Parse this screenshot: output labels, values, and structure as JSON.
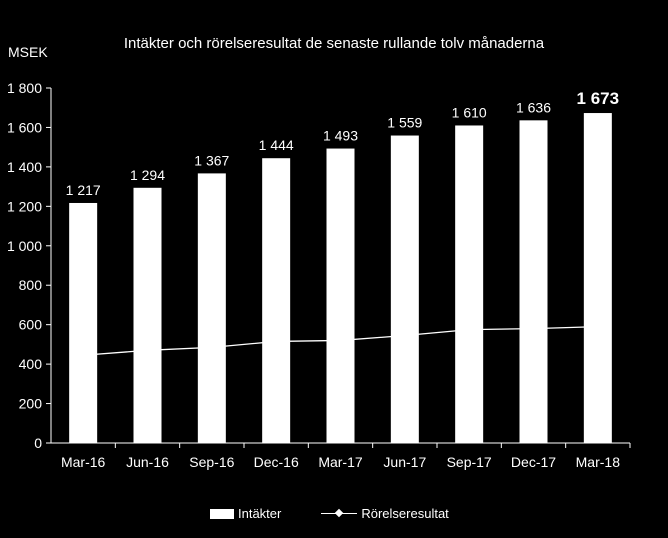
{
  "chart_data": {
    "type": "bar",
    "title": "Intäkter och rörelseresultat de senaste rullande tolv månaderna",
    "ylabel": "MSEK",
    "ylim": [
      0,
      1800
    ],
    "yticks": [
      0,
      200,
      400,
      600,
      800,
      1000,
      1200,
      1400,
      1600,
      1800
    ],
    "ytick_labels": [
      "0",
      "200",
      "400",
      "600",
      "800",
      "1 000",
      "1 200",
      "1 400",
      "1 600",
      "1 800"
    ],
    "categories": [
      "Mar-16",
      "Jun-16",
      "Sep-16",
      "Dec-16",
      "Mar-17",
      "Jun-17",
      "Sep-17",
      "Dec-17",
      "Mar-18"
    ],
    "series": [
      {
        "name": "Intäkter",
        "type": "bar",
        "values": [
          1217,
          1294,
          1367,
          1444,
          1493,
          1559,
          1610,
          1636,
          1673
        ],
        "data_labels": [
          "1 217",
          "1 294",
          "1 367",
          "1 444",
          "1 493",
          "1 559",
          "1 610",
          "1 636",
          "1 673"
        ],
        "color": "#ffffff"
      },
      {
        "name": "Rörelseresultat",
        "type": "line",
        "values": [
          445,
          470,
          485,
          515,
          520,
          545,
          575,
          580,
          590
        ],
        "color": "#ffffff"
      }
    ],
    "grid": false,
    "legend_position": "bottom"
  }
}
